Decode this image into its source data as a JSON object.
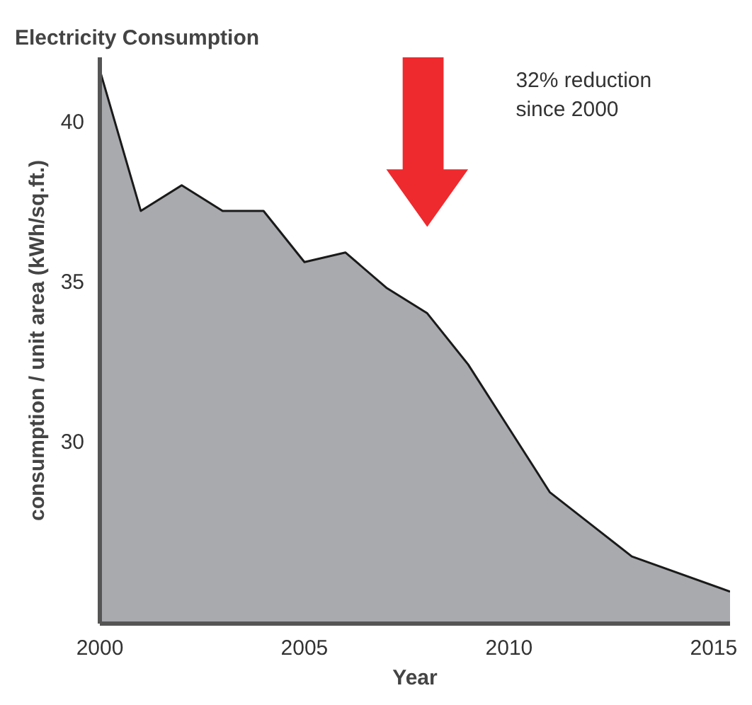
{
  "chart_data": {
    "type": "area",
    "title": "Electricity Consumption",
    "xlabel": "Year",
    "ylabel": "consumption / unit area (kWh/sq.ft.)",
    "x": [
      2000,
      2001,
      2002,
      2003,
      2004,
      2005,
      2006,
      2007,
      2008,
      2009,
      2010,
      2011,
      2012,
      2013,
      2015.4
    ],
    "series": [
      {
        "color": "#a9aaae",
        "values": [
          41.6,
          37.2,
          38.0,
          37.2,
          37.2,
          35.6,
          35.9,
          34.8,
          34.0,
          32.4,
          30.4,
          28.4,
          27.4,
          26.4,
          25.3
        ]
      }
    ],
    "xlim": [
      2000,
      2015.4
    ],
    "ylim": [
      24.3,
      42
    ],
    "xticks": [
      2000,
      2005,
      2010,
      2015
    ],
    "yticks": [
      30,
      35,
      40
    ],
    "annotations": [
      "32% reduction\nsince 2000"
    ],
    "grid": false
  }
}
